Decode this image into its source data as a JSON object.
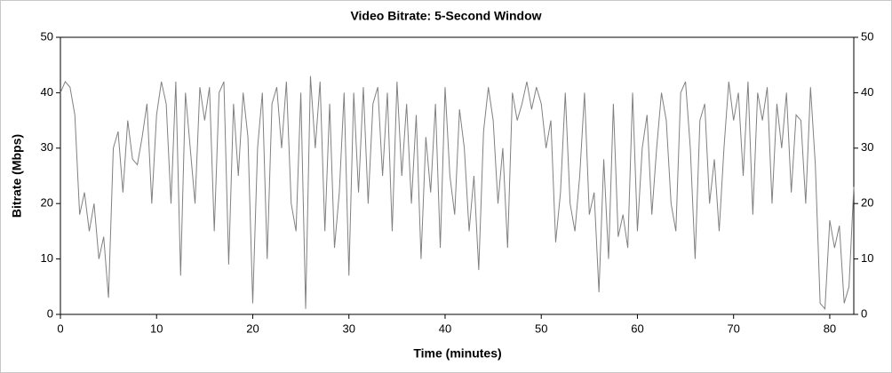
{
  "chart_data": {
    "type": "line",
    "title": "Video Bitrate: 5-Second Window",
    "x_label": "Time (minutes)",
    "y_label": "Bitrate (Mbps)",
    "x": [
      0,
      0.5,
      1,
      1.5,
      2,
      2.5,
      3,
      3.5,
      4,
      4.5,
      5,
      5.5,
      6,
      6.5,
      7,
      7.5,
      8,
      8.5,
      9,
      9.5,
      10,
      10.5,
      11,
      11.5,
      12,
      12.5,
      13,
      13.5,
      14,
      14.5,
      15,
      15.5,
      16,
      16.5,
      17,
      17.5,
      18,
      18.5,
      19,
      19.5,
      20,
      20.5,
      21,
      21.5,
      22,
      22.5,
      23,
      23.5,
      24,
      24.5,
      25,
      25.5,
      26,
      26.5,
      27,
      27.5,
      28,
      28.5,
      29,
      29.5,
      30,
      30.5,
      31,
      31.5,
      32,
      32.5,
      33,
      33.5,
      34,
      34.5,
      35,
      35.5,
      36,
      36.5,
      37,
      37.5,
      38,
      38.5,
      39,
      39.5,
      40,
      40.5,
      41,
      41.5,
      42,
      42.5,
      43,
      43.5,
      44,
      44.5,
      45,
      45.5,
      46,
      46.5,
      47,
      47.5,
      48,
      48.5,
      49,
      49.5,
      50,
      50.5,
      51,
      51.5,
      52,
      52.5,
      53,
      53.5,
      54,
      54.5,
      55,
      55.5,
      56,
      56.5,
      57,
      57.5,
      58,
      58.5,
      59,
      59.5,
      60,
      60.5,
      61,
      61.5,
      62,
      62.5,
      63,
      63.5,
      64,
      64.5,
      65,
      65.5,
      66,
      66.5,
      67,
      67.5,
      68,
      68.5,
      69,
      69.5,
      70,
      70.5,
      71,
      71.5,
      72,
      72.5,
      73,
      73.5,
      74,
      74.5,
      75,
      75.5,
      76,
      76.5,
      77,
      77.5,
      78,
      78.5,
      79,
      79.5,
      80,
      80.5,
      81,
      81.5,
      82,
      82.5
    ],
    "series": [
      {
        "name": "Bitrate",
        "color": "#808080",
        "values": [
          40,
          42,
          41,
          36,
          18,
          22,
          15,
          20,
          10,
          14,
          3,
          30,
          33,
          22,
          35,
          28,
          27,
          32,
          38,
          20,
          36,
          42,
          38,
          20,
          42,
          7,
          40,
          30,
          20,
          41,
          35,
          41,
          15,
          40,
          42,
          9,
          38,
          25,
          40,
          32,
          2,
          30,
          40,
          10,
          38,
          41,
          30,
          42,
          20,
          15,
          40,
          1,
          43,
          30,
          42,
          15,
          38,
          12,
          22,
          40,
          7,
          40,
          22,
          41,
          20,
          38,
          41,
          25,
          40,
          15,
          42,
          25,
          38,
          20,
          36,
          10,
          32,
          22,
          38,
          12,
          41,
          25,
          18,
          37,
          30,
          15,
          25,
          8,
          33,
          41,
          35,
          20,
          30,
          12,
          40,
          35,
          38,
          42,
          37,
          41,
          38,
          30,
          35,
          13,
          22,
          40,
          20,
          15,
          25,
          40,
          18,
          22,
          4,
          28,
          10,
          38,
          14,
          18,
          12,
          40,
          15,
          30,
          36,
          18,
          30,
          40,
          35,
          20,
          15,
          40,
          42,
          30,
          10,
          35,
          38,
          20,
          28,
          15,
          30,
          42,
          35,
          40,
          25,
          42,
          18,
          40,
          35,
          41,
          20,
          38,
          30,
          40,
          22,
          36,
          35,
          20,
          41,
          27,
          2,
          1,
          17,
          12,
          16,
          2,
          5,
          23
        ]
      }
    ],
    "xlim": [
      0,
      82.5
    ],
    "xticks": [
      0,
      10,
      20,
      30,
      40,
      50,
      60,
      70,
      80
    ],
    "ylim": [
      0,
      50
    ],
    "yticks": [
      0,
      10,
      20,
      30,
      40,
      50
    ],
    "y2lim": [
      0,
      50
    ],
    "y2ticks": [
      0,
      10,
      20,
      30,
      40,
      50
    ],
    "grid": false
  }
}
